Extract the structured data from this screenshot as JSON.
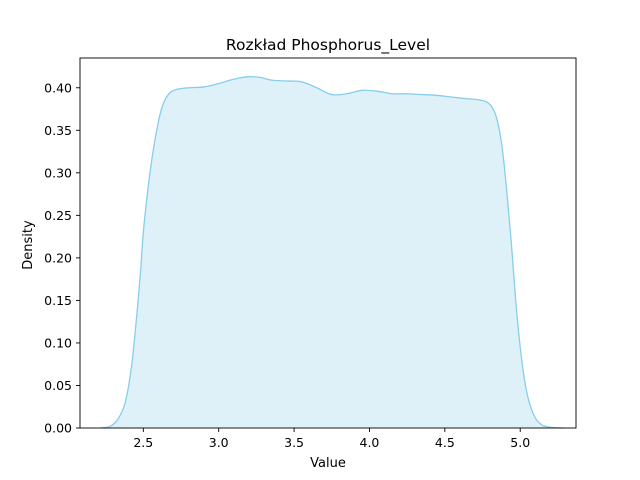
{
  "chart_data": {
    "type": "area",
    "title": "Rozkład Phosphorus_Level",
    "xlabel": "Value",
    "ylabel": "Density",
    "xlim": [
      2.08,
      5.37
    ],
    "ylim": [
      0.0,
      0.435
    ],
    "xticks": [
      2.5,
      3.0,
      3.5,
      4.0,
      4.5,
      5.0
    ],
    "xtick_labels": [
      "2.5",
      "3.0",
      "3.5",
      "4.0",
      "4.5",
      "5.0"
    ],
    "yticks": [
      0.0,
      0.05,
      0.1,
      0.15,
      0.2,
      0.25,
      0.3,
      0.35,
      0.4
    ],
    "ytick_labels": [
      "0.00",
      "0.05",
      "0.10",
      "0.15",
      "0.20",
      "0.25",
      "0.30",
      "0.35",
      "0.40"
    ],
    "grid": false,
    "colors": {
      "line": "#87ceeb",
      "fill": "#87ceeb",
      "fill_opacity": 0.28
    },
    "series": [
      {
        "x": [
          2.22,
          2.28,
          2.33,
          2.38,
          2.42,
          2.45,
          2.48,
          2.5,
          2.53,
          2.56,
          2.6,
          2.63,
          2.67,
          2.72,
          2.8,
          2.9,
          3.0,
          3.1,
          3.2,
          3.28,
          3.35,
          3.45,
          3.55,
          3.65,
          3.75,
          3.85,
          3.95,
          4.05,
          4.15,
          4.25,
          4.35,
          4.45,
          4.55,
          4.65,
          4.72,
          4.78,
          4.82,
          4.85,
          4.88,
          4.91,
          4.94,
          4.97,
          5.0,
          5.03,
          5.06,
          5.1,
          5.14,
          5.18,
          5.22,
          5.26,
          5.29
        ],
        "y": [
          0.0,
          0.002,
          0.01,
          0.03,
          0.07,
          0.12,
          0.18,
          0.23,
          0.28,
          0.32,
          0.36,
          0.38,
          0.393,
          0.398,
          0.4,
          0.401,
          0.405,
          0.41,
          0.413,
          0.412,
          0.409,
          0.408,
          0.407,
          0.4,
          0.392,
          0.393,
          0.397,
          0.396,
          0.393,
          0.393,
          0.392,
          0.391,
          0.389,
          0.387,
          0.386,
          0.383,
          0.375,
          0.36,
          0.33,
          0.28,
          0.22,
          0.15,
          0.095,
          0.055,
          0.03,
          0.012,
          0.004,
          0.0015,
          0.0005,
          0.0001,
          0.0
        ]
      }
    ]
  }
}
